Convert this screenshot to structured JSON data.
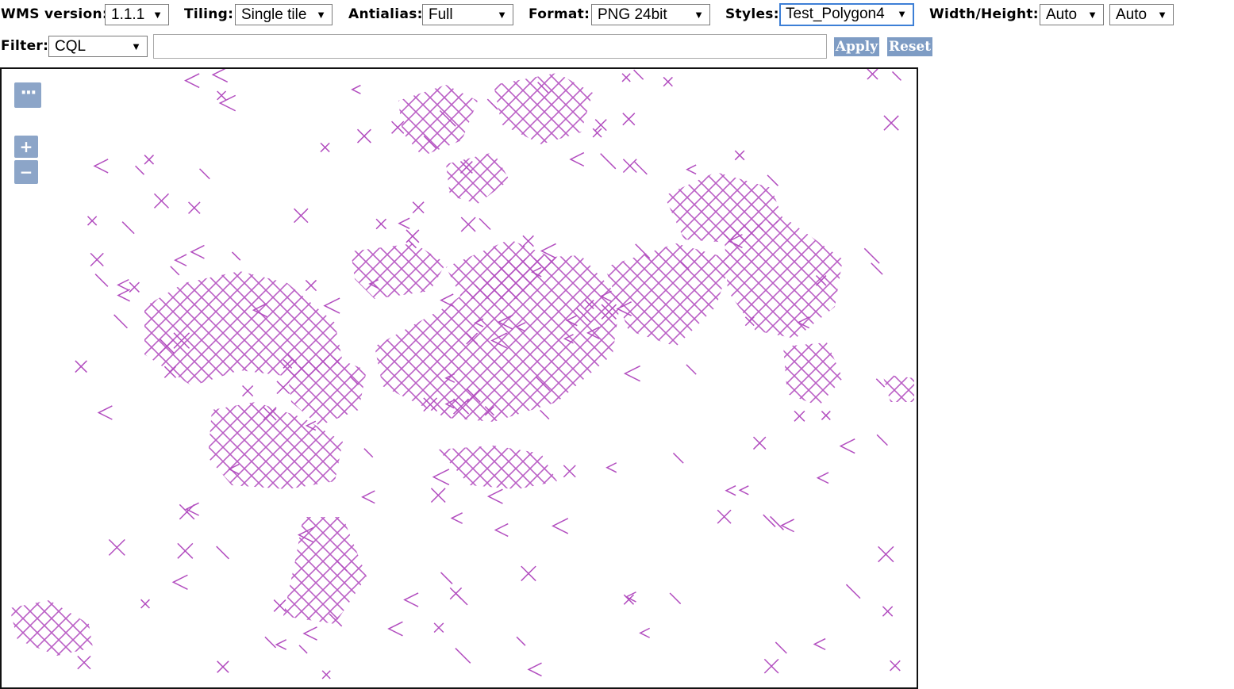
{
  "toolbar": {
    "wms_version": {
      "label": "WMS version:",
      "value": "1.1.1"
    },
    "tiling": {
      "label": "Tiling:",
      "value": "Single tile"
    },
    "antialias": {
      "label": "Antialias:",
      "value": "Full"
    },
    "format": {
      "label": "Format:",
      "value": "PNG 24bit"
    },
    "styles": {
      "label": "Styles:",
      "value": "Test_Polygon4"
    },
    "width_height": {
      "label": "Width/Height:",
      "width_value": "Auto",
      "height_value": "Auto"
    },
    "filter": {
      "label": "Filter:",
      "type_value": "CQL",
      "text_value": ""
    },
    "apply_label": "Apply",
    "reset_label": "Reset",
    "dropdown_glyph": "▼"
  },
  "map": {
    "layer_switcher_glyph": "···",
    "zoom_in_glyph": "+",
    "zoom_out_glyph": "−",
    "hatch_color": "#b24dbf",
    "control_color": "#8ca5c8"
  }
}
